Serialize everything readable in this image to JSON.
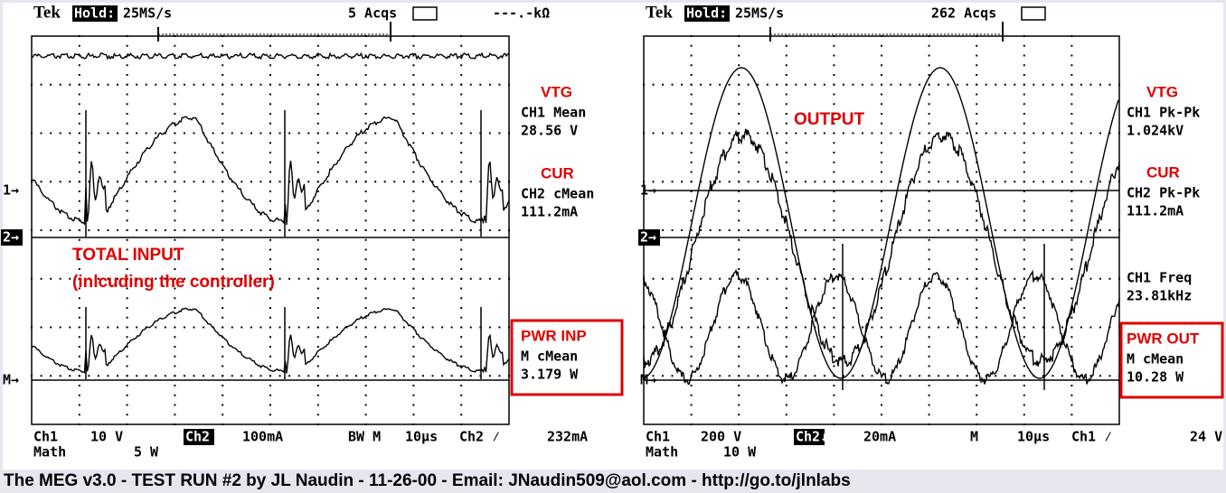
{
  "scopes": [
    {
      "header": {
        "brand": "Tek",
        "mode": "Hold:",
        "rate": "25MS/s",
        "acqs": "5 Acqs",
        "meter": "---.-kΩ"
      },
      "markers": {
        "ch1": "1→",
        "ch2": "2→",
        "math": "M→"
      },
      "annotations": [
        "TOTAL INPUT",
        "(inlcuding the controller)"
      ],
      "readouts": [
        {
          "signal": "VTG",
          "measure": "CH1 Mean",
          "value": "28.56 V"
        },
        {
          "signal": "CUR",
          "measure": "CH2 cMean",
          "value": "111.2mA"
        },
        {
          "signal": "PWR INP",
          "measure": "M cMean",
          "value": "3.179 W"
        }
      ],
      "status_row": [
        "Ch1",
        "10 V",
        "Ch2",
        "100mA",
        "BW M",
        "10µs",
        "Ch2 ⁄",
        "232mA"
      ],
      "math_row": [
        "Math",
        "5 W"
      ]
    },
    {
      "header": {
        "brand": "Tek",
        "mode": "Hold:",
        "rate": "25MS/s",
        "acqs": "262 Acqs"
      },
      "markers": {
        "ch1": "1→",
        "ch2": "2→",
        "math": "M→"
      },
      "annotations": [
        "OUTPUT"
      ],
      "readouts": [
        {
          "signal": "VTG",
          "measure": "CH1 Pk-Pk",
          "value": "1.024kV"
        },
        {
          "signal": "CUR",
          "measure": "CH2 Pk-Pk",
          "value": "111.2mA"
        },
        {
          "measure": "CH1 Freq",
          "value": "23.81kHz"
        },
        {
          "signal": "PWR OUT",
          "measure": "M cMean",
          "value": "10.28 W"
        }
      ],
      "status_row": [
        "Ch1",
        "200 V",
        "Ch2↓",
        "20mA",
        "M",
        "10µs",
        "Ch1 ⁄",
        "24 V"
      ],
      "math_row": [
        "Math",
        "10 W"
      ]
    }
  ],
  "caption": "The MEG v3.0 - TEST RUN #2 by JL Naudin - 11-26-00 - Email: JNaudin509@aol.com - http://go.to/jlnlabs"
}
